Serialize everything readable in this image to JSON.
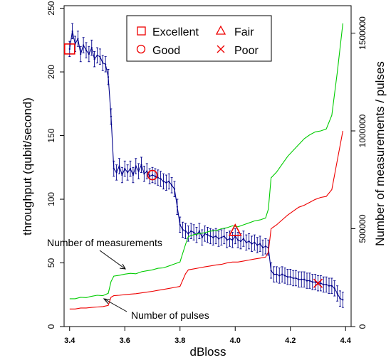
{
  "chart_data": {
    "type": "line",
    "xlabel": "dBloss",
    "ylabel": "throughput (qubit/second)",
    "y2label": "Number of measurements / pulses",
    "xlim": [
      3.38,
      4.42
    ],
    "ylim": [
      0,
      252
    ],
    "y2lim": [
      0,
      1640000
    ],
    "x_ticks": [
      "3.4",
      "3.6",
      "3.8",
      "4.0",
      "4.2",
      "4.4"
    ],
    "y_ticks": [
      "0",
      "50",
      "100",
      "150",
      "200",
      "250"
    ],
    "y2_ticks": [
      "0",
      "500000",
      "1000000",
      "1500000"
    ],
    "legend": {
      "position": "top-center",
      "entries": [
        {
          "label": "Excellent",
          "marker": "square",
          "color": "#ee0000"
        },
        {
          "label": "Fair",
          "marker": "triangle",
          "color": "#ee0000"
        },
        {
          "label": "Good",
          "marker": "circle",
          "color": "#ee0000"
        },
        {
          "label": "Poor",
          "marker": "x",
          "color": "#ee0000"
        }
      ]
    },
    "annotations": [
      {
        "text": "Number of measurements",
        "color": "#000000"
      },
      {
        "text": "Number of pulses",
        "color": "#000000"
      }
    ],
    "highlight_points": [
      {
        "label": "Excellent",
        "marker": "square",
        "x": 3.4,
        "y": 218
      },
      {
        "label": "Good",
        "marker": "circle",
        "x": 3.7,
        "y": 119
      },
      {
        "label": "Fair",
        "marker": "triangle",
        "x": 4.0,
        "y": 75
      },
      {
        "label": "Poor",
        "marker": "x",
        "x": 4.3,
        "y": 34
      }
    ],
    "series": [
      {
        "axis": "left",
        "color": "#00008b",
        "error_bars": true,
        "x": [
          3.4,
          3.41,
          3.42,
          3.43,
          3.44,
          3.45,
          3.46,
          3.47,
          3.48,
          3.49,
          3.5,
          3.51,
          3.52,
          3.53,
          3.54,
          3.55,
          3.56,
          3.57,
          3.58,
          3.59,
          3.6,
          3.61,
          3.62,
          3.63,
          3.64,
          3.65,
          3.66,
          3.67,
          3.68,
          3.69,
          3.7,
          3.71,
          3.72,
          3.73,
          3.74,
          3.75,
          3.76,
          3.77,
          3.78,
          3.79,
          3.8,
          3.81,
          3.82,
          3.83,
          3.84,
          3.85,
          3.86,
          3.87,
          3.88,
          3.89,
          3.9,
          3.91,
          3.92,
          3.93,
          3.94,
          3.95,
          3.96,
          3.97,
          3.98,
          3.99,
          4.0,
          4.01,
          4.02,
          4.03,
          4.04,
          4.05,
          4.06,
          4.07,
          4.08,
          4.09,
          4.1,
          4.11,
          4.12,
          4.13,
          4.14,
          4.15,
          4.16,
          4.17,
          4.18,
          4.19,
          4.2,
          4.21,
          4.22,
          4.23,
          4.24,
          4.25,
          4.26,
          4.27,
          4.28,
          4.29,
          4.3,
          4.31,
          4.32,
          4.33,
          4.34,
          4.35,
          4.36,
          4.37,
          4.38,
          4.39
        ],
        "y": [
          218,
          232,
          222,
          226,
          214,
          221,
          217,
          214,
          219,
          210,
          213,
          212,
          207,
          206,
          196,
          165,
          124,
          121,
          126,
          119,
          124,
          121,
          124,
          119,
          126,
          122,
          127,
          120,
          122,
          118,
          119,
          118,
          117,
          116,
          114,
          113,
          114,
          111,
          108,
          94,
          80,
          76,
          75,
          73,
          75,
          74,
          72,
          75,
          70,
          73,
          72,
          71,
          70,
          71,
          69,
          70,
          71,
          68,
          69,
          68,
          71,
          68,
          67,
          69,
          66,
          67,
          65,
          66,
          64,
          65,
          62,
          63,
          62,
          44,
          41,
          41,
          40,
          41,
          40,
          39,
          39,
          38,
          38,
          37,
          37,
          37,
          36,
          36,
          35,
          35,
          34,
          34,
          33,
          33,
          32,
          32,
          30,
          26,
          22,
          21
        ],
        "err": 6
      },
      {
        "name": "Number of measurements",
        "axis": "right",
        "color": "#00cc00",
        "x": [
          3.4,
          3.42,
          3.44,
          3.46,
          3.48,
          3.5,
          3.52,
          3.54,
          3.55,
          3.56,
          3.58,
          3.6,
          3.62,
          3.64,
          3.66,
          3.68,
          3.7,
          3.72,
          3.74,
          3.76,
          3.78,
          3.8,
          3.82,
          3.83,
          3.85,
          3.87,
          3.89,
          3.91,
          3.93,
          3.95,
          3.97,
          3.99,
          4.01,
          4.03,
          4.05,
          4.07,
          4.09,
          4.11,
          4.12,
          4.13,
          4.15,
          4.17,
          4.19,
          4.21,
          4.23,
          4.25,
          4.27,
          4.29,
          4.31,
          4.33,
          4.35,
          4.37,
          4.39
        ],
        "y": [
          142000,
          142000,
          150000,
          148000,
          155000,
          160000,
          158000,
          170000,
          230000,
          258000,
          262000,
          268000,
          272000,
          270000,
          280000,
          285000,
          290000,
          298000,
          300000,
          310000,
          320000,
          330000,
          420000,
          460000,
          470000,
          475000,
          480000,
          488000,
          490000,
          500000,
          505000,
          515000,
          510000,
          520000,
          530000,
          540000,
          545000,
          555000,
          600000,
          760000,
          790000,
          830000,
          870000,
          900000,
          930000,
          960000,
          980000,
          995000,
          1000000,
          1010000,
          1080000,
          1300000,
          1550000
        ]
      },
      {
        "name": "Number of pulses",
        "axis": "right",
        "color": "#ee0000",
        "x": [
          3.4,
          3.42,
          3.44,
          3.46,
          3.48,
          3.5,
          3.52,
          3.54,
          3.55,
          3.56,
          3.58,
          3.6,
          3.62,
          3.64,
          3.66,
          3.68,
          3.7,
          3.72,
          3.74,
          3.76,
          3.78,
          3.8,
          3.82,
          3.83,
          3.85,
          3.87,
          3.89,
          3.91,
          3.93,
          3.95,
          3.97,
          3.99,
          4.01,
          4.03,
          4.05,
          4.07,
          4.09,
          4.11,
          4.12,
          4.13,
          4.15,
          4.17,
          4.19,
          4.21,
          4.23,
          4.25,
          4.27,
          4.29,
          4.31,
          4.33,
          4.35,
          4.37,
          4.39
        ],
        "y": [
          90000,
          90000,
          95000,
          95000,
          98000,
          100000,
          102000,
          108000,
          150000,
          158000,
          160000,
          163000,
          166000,
          168000,
          172000,
          176000,
          180000,
          185000,
          190000,
          195000,
          200000,
          205000,
          270000,
          290000,
          295000,
          300000,
          305000,
          310000,
          315000,
          318000,
          325000,
          330000,
          330000,
          335000,
          340000,
          345000,
          350000,
          355000,
          380000,
          500000,
          520000,
          545000,
          570000,
          590000,
          610000,
          620000,
          635000,
          650000,
          660000,
          665000,
          700000,
          850000,
          1000000
        ]
      }
    ]
  }
}
